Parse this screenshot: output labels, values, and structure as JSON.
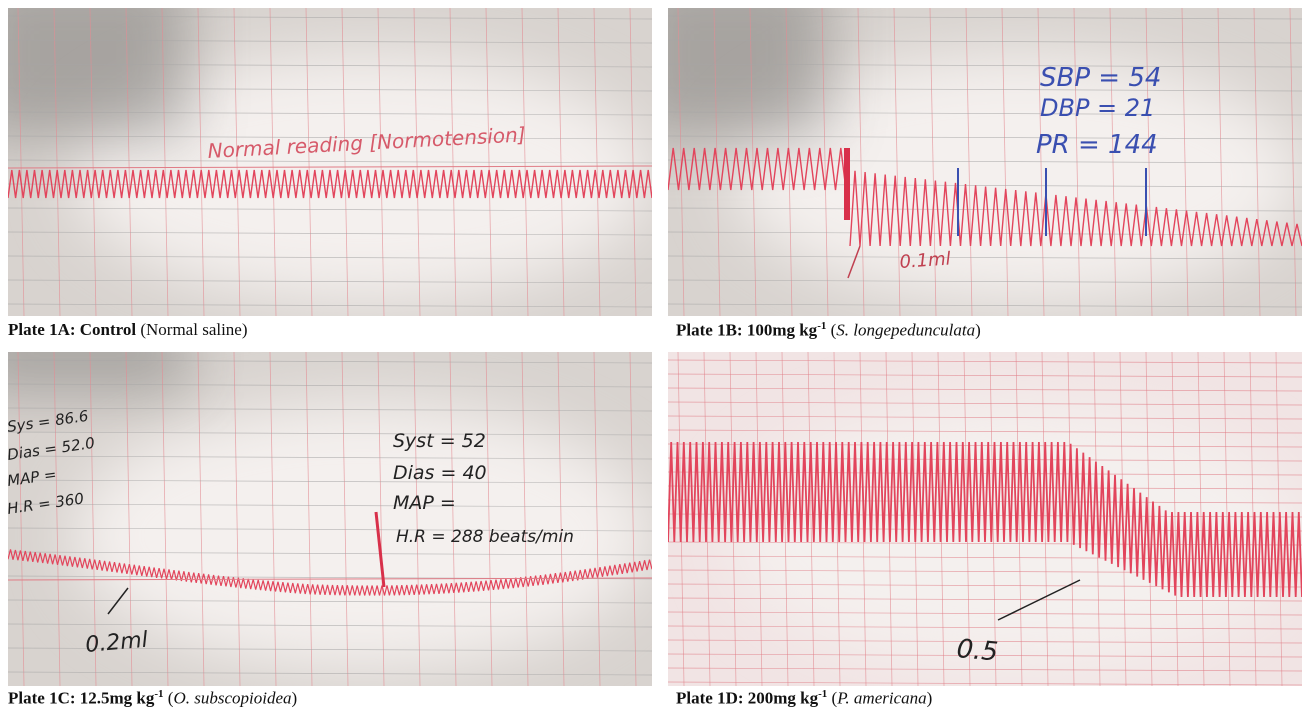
{
  "plates": [
    {
      "caption": [
        {
          "text": "Plate 1A: Control",
          "style": "bold"
        },
        {
          "text": " (Normal saline)"
        }
      ],
      "annotations": [
        "Normal reading [Normotension]"
      ]
    },
    {
      "caption": [
        {
          "text": "Plate 1B: 100mg kg",
          "style": "bold"
        },
        {
          "text": "-1",
          "style": "sup"
        },
        {
          "text": " ("
        },
        {
          "text": "S. longepedunculata",
          "style": "italic"
        },
        {
          "text": ")"
        }
      ],
      "annotations": [
        "SBP = 54",
        "DBP = 21",
        "PR = 144",
        "0.1ml"
      ]
    },
    {
      "caption": [
        {
          "text": "Plate 1C: 12.5mg kg",
          "style": "bold"
        },
        {
          "text": "-1",
          "style": "sup"
        },
        {
          "text": " ("
        },
        {
          "text": "O. subscopioidea",
          "style": "italic"
        },
        {
          "text": ")"
        }
      ],
      "annotations": [
        "Sys = 86.6",
        "Dias = 52.0",
        "MAP =",
        "H.R = 360",
        "Syst = 52",
        "Dias = 40",
        "MAP =",
        "H.R = 288 beats/min",
        "0.2ml"
      ]
    },
    {
      "caption": [
        {
          "text": "Plate 1D: 200mg kg",
          "style": "bold"
        },
        {
          "text": "-1",
          "style": "sup"
        },
        {
          "text": " ("
        },
        {
          "text": "P. americana",
          "style": "italic"
        },
        {
          "text": ")"
        }
      ],
      "annotations": [
        "0.5"
      ]
    }
  ]
}
